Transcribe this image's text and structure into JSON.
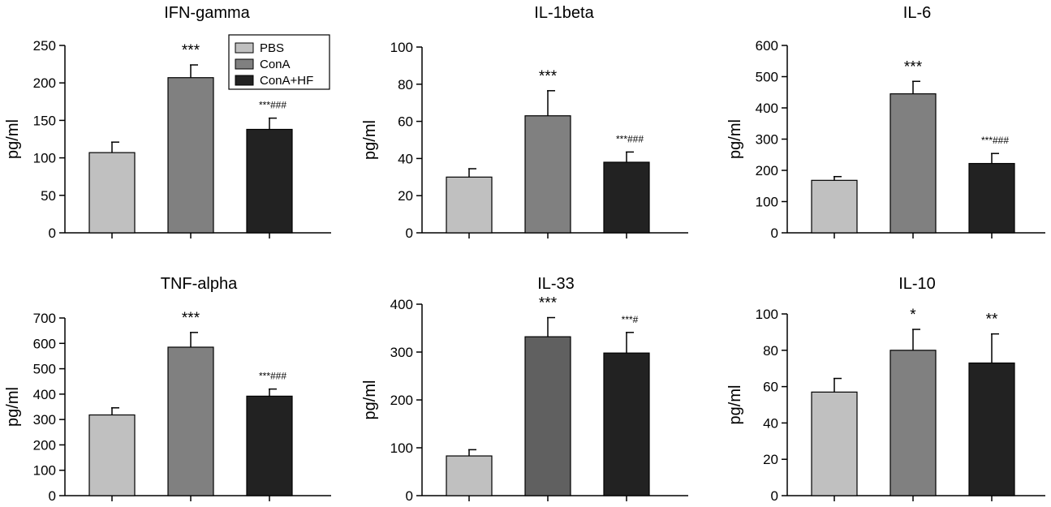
{
  "legend": {
    "entries": [
      {
        "label": "PBS",
        "color": "#c0c0c0"
      },
      {
        "label": "ConA",
        "color": "#808080"
      },
      {
        "label": "ConA+HF",
        "color": "#222222"
      }
    ]
  },
  "chart_data": [
    {
      "type": "bar",
      "title": "IFN-gamma",
      "ylabel": "pg/ml",
      "ylim": [
        0,
        250
      ],
      "yticks": [
        0,
        50,
        100,
        150,
        200,
        250
      ],
      "categories": [
        "PBS",
        "ConA",
        "ConA+HF"
      ],
      "values": [
        107,
        207,
        138
      ],
      "errors": [
        14,
        17,
        15
      ],
      "annotations": [
        "",
        "***",
        "***###"
      ],
      "colors": [
        "#c0c0c0",
        "#808080",
        "#222222"
      ],
      "legend": true
    },
    {
      "type": "bar",
      "title": "IL-1beta",
      "ylabel": "pg/ml",
      "ylim": [
        0,
        100
      ],
      "yticks": [
        0,
        20,
        40,
        60,
        80,
        100
      ],
      "categories": [
        "PBS",
        "ConA",
        "ConA+HF"
      ],
      "values": [
        30,
        63,
        38
      ],
      "errors": [
        4.5,
        13.5,
        5.5
      ],
      "annotations": [
        "",
        "***",
        "***###"
      ],
      "colors": [
        "#c0c0c0",
        "#808080",
        "#222222"
      ],
      "legend": false
    },
    {
      "type": "bar",
      "title": "IL-6",
      "ylabel": "pg/ml",
      "ylim": [
        0,
        600
      ],
      "yticks": [
        0,
        100,
        200,
        300,
        400,
        500,
        600
      ],
      "categories": [
        "PBS",
        "ConA",
        "ConA+HF"
      ],
      "values": [
        168,
        445,
        222
      ],
      "errors": [
        12,
        40,
        32
      ],
      "annotations": [
        "",
        "***",
        "***###"
      ],
      "colors": [
        "#c0c0c0",
        "#808080",
        "#222222"
      ],
      "legend": false
    },
    {
      "type": "bar",
      "title": "TNF-alpha",
      "ylabel": "pg/ml",
      "ylim": [
        0,
        700
      ],
      "yticks": [
        0,
        100,
        200,
        300,
        400,
        500,
        600,
        700
      ],
      "categories": [
        "PBS",
        "ConA",
        "ConA+HF"
      ],
      "values": [
        318,
        585,
        392
      ],
      "errors": [
        28,
        58,
        28
      ],
      "annotations": [
        "",
        "***",
        "***###"
      ],
      "colors": [
        "#c0c0c0",
        "#808080",
        "#222222"
      ],
      "legend": false
    },
    {
      "type": "bar",
      "title": "IL-33",
      "ylabel": "pg/ml",
      "ylim": [
        0,
        400
      ],
      "yticks": [
        0,
        100,
        200,
        300,
        400
      ],
      "categories": [
        "PBS",
        "ConA",
        "ConA+HF"
      ],
      "values": [
        83,
        332,
        298
      ],
      "errors": [
        13,
        40,
        43
      ],
      "annotations": [
        "",
        "***",
        "***#"
      ],
      "colors": [
        "#c0c0c0",
        "#606060",
        "#222222"
      ],
      "legend": false
    },
    {
      "type": "bar",
      "title": "IL-10",
      "ylabel": "pg/ml",
      "ylim": [
        0,
        100
      ],
      "yticks": [
        0,
        20,
        40,
        60,
        80,
        100
      ],
      "categories": [
        "PBS",
        "ConA",
        "ConA+HF"
      ],
      "values": [
        57,
        80,
        73
      ],
      "errors": [
        7.5,
        11.5,
        16
      ],
      "annotations": [
        "",
        "*",
        "**"
      ],
      "colors": [
        "#c0c0c0",
        "#808080",
        "#222222"
      ],
      "legend": false
    }
  ]
}
